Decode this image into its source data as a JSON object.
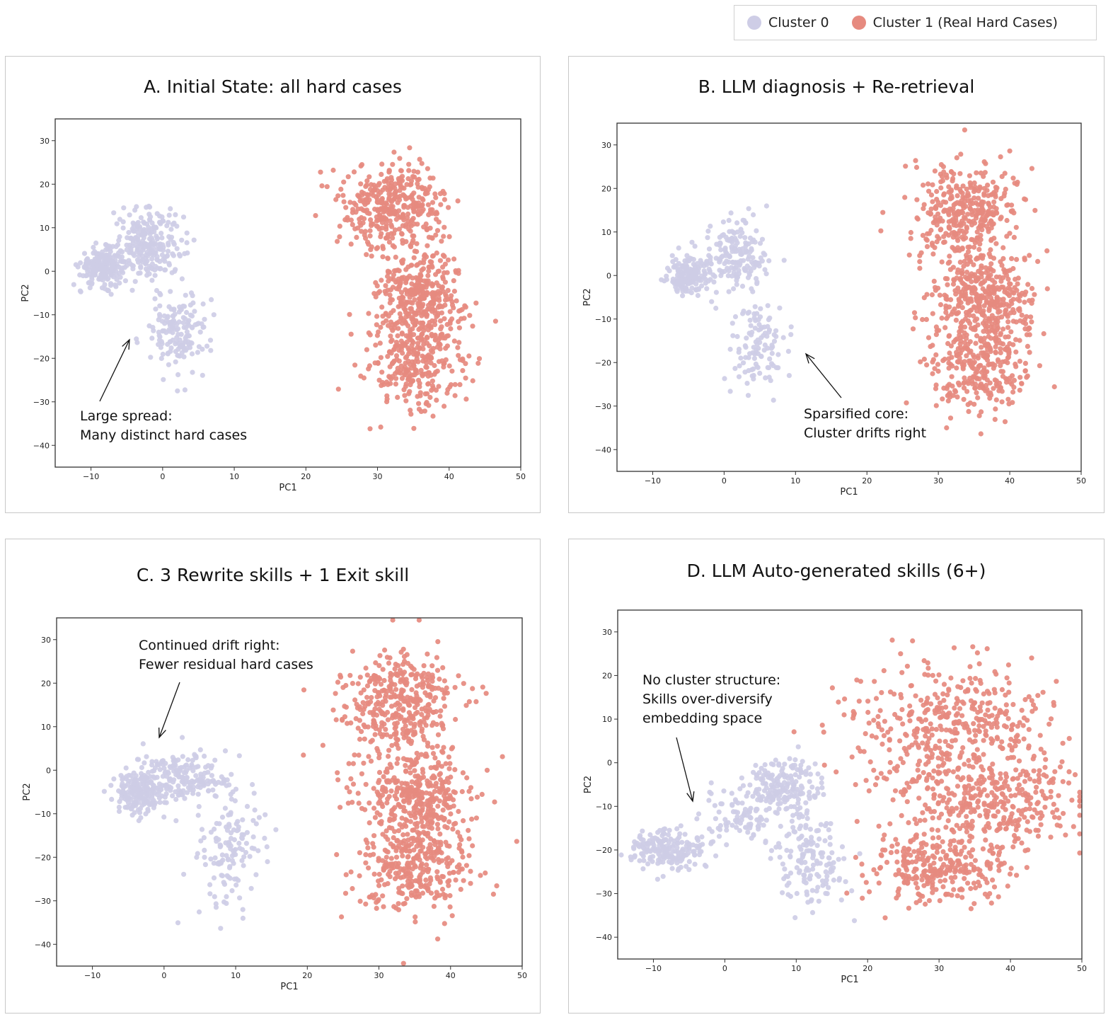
{
  "legend": {
    "items": [
      {
        "label": "Cluster 0",
        "color": "#cecde6"
      },
      {
        "label": "Cluster 1 (Real Hard Cases)",
        "color": "#e68a7f"
      }
    ]
  },
  "panels": [
    {
      "title": "A. Initial State: all hard cases",
      "annotation_lines": [
        "Large spread:",
        "Many distinct hard cases"
      ]
    },
    {
      "title": "B. LLM diagnosis + Re-retrieval",
      "annotation_lines": [
        "Sparsified core:",
        "Cluster drifts right"
      ]
    },
    {
      "title": "C. 3 Rewrite skills + 1 Exit skill",
      "annotation_lines": [
        "Continued drift right:",
        "Fewer residual hard cases"
      ]
    },
    {
      "title": "D. LLM Auto-generated skills (6+)",
      "annotation_lines": [
        "No cluster structure:",
        "Skills over-diversify",
        "embedding space"
      ]
    }
  ],
  "chart_data": [
    {
      "type": "scatter",
      "title": "A. Initial State: all hard cases",
      "xlabel": "PC1",
      "ylabel": "PC2",
      "xlim": [
        -15,
        50
      ],
      "ylim": [
        -45,
        35
      ],
      "xticks": [
        -10,
        0,
        10,
        20,
        30,
        40,
        50
      ],
      "yticks": [
        -40,
        -30,
        -20,
        -10,
        0,
        10,
        20,
        30
      ],
      "grid": false,
      "series": [
        {
          "name": "Cluster 0",
          "color": "#cecde6",
          "blobs": [
            {
              "cx": -8.5,
              "cy": 1,
              "sx": 1.5,
              "sy": 2,
              "n": 220
            },
            {
              "cx": -2,
              "cy": 6,
              "sx": 2.5,
              "sy": 4,
              "n": 260
            },
            {
              "cx": 2,
              "cy": -14,
              "sx": 2.2,
              "sy": 4.5,
              "n": 160
            }
          ]
        },
        {
          "name": "Cluster 1 (Real Hard Cases)",
          "color": "#e68a7f",
          "blobs": [
            {
              "cx": 32.5,
              "cy": 15,
              "sx": 3.5,
              "sy": 5,
              "n": 380
            },
            {
              "cx": 36,
              "cy": -5,
              "sx": 3,
              "sy": 5,
              "n": 320
            },
            {
              "cx": 35.5,
              "cy": -20,
              "sx": 3.5,
              "sy": 6,
              "n": 320
            }
          ]
        }
      ]
    },
    {
      "type": "scatter",
      "title": "B. LLM diagnosis + Re-retrieval",
      "xlabel": "PC1",
      "ylabel": "PC2",
      "xlim": [
        -15,
        50
      ],
      "ylim": [
        -45,
        35
      ],
      "xticks": [
        -10,
        0,
        10,
        20,
        30,
        40,
        50
      ],
      "yticks": [
        -40,
        -30,
        -20,
        -10,
        0,
        10,
        20,
        30
      ],
      "grid": false,
      "series": [
        {
          "name": "Cluster 0",
          "color": "#cecde6",
          "blobs": [
            {
              "cx": -5,
              "cy": 0,
              "sx": 1.3,
              "sy": 2,
              "n": 180
            },
            {
              "cx": 1.5,
              "cy": 5,
              "sx": 2.2,
              "sy": 4.5,
              "n": 180
            },
            {
              "cx": 5,
              "cy": -16,
              "sx": 2,
              "sy": 5,
              "n": 110
            }
          ]
        },
        {
          "name": "Cluster 1 (Real Hard Cases)",
          "color": "#e68a7f",
          "blobs": [
            {
              "cx": 34,
              "cy": 14,
              "sx": 3.5,
              "sy": 6,
              "n": 360
            },
            {
              "cx": 36,
              "cy": -5,
              "sx": 3.5,
              "sy": 5,
              "n": 320
            },
            {
              "cx": 36,
              "cy": -20,
              "sx": 3.5,
              "sy": 6,
              "n": 320
            }
          ]
        }
      ]
    },
    {
      "type": "scatter",
      "title": "C. 3 Rewrite skills + 1 Exit skill",
      "xlabel": "PC1",
      "ylabel": "PC2",
      "xlim": [
        -15,
        50
      ],
      "ylim": [
        -45,
        35
      ],
      "xticks": [
        -10,
        0,
        10,
        20,
        30,
        40,
        50
      ],
      "yticks": [
        -40,
        -30,
        -20,
        -10,
        0,
        10,
        20,
        30
      ],
      "grid": false,
      "series": [
        {
          "name": "Cluster 0",
          "color": "#cecde6",
          "blobs": [
            {
              "cx": -3.5,
              "cy": -5,
              "sx": 1.8,
              "sy": 2.5,
              "n": 200
            },
            {
              "cx": 3,
              "cy": -2,
              "sx": 3,
              "sy": 3,
              "n": 180
            },
            {
              "cx": 9,
              "cy": -18,
              "sx": 2.5,
              "sy": 8,
              "n": 140
            }
          ]
        },
        {
          "name": "Cluster 1 (Real Hard Cases)",
          "color": "#e68a7f",
          "blobs": [
            {
              "cx": 33,
              "cy": 15,
              "sx": 4,
              "sy": 6,
              "n": 380
            },
            {
              "cx": 35,
              "cy": -5,
              "sx": 4,
              "sy": 5,
              "n": 340
            },
            {
              "cx": 35,
              "cy": -22,
              "sx": 4,
              "sy": 6,
              "n": 340
            }
          ]
        }
      ]
    },
    {
      "type": "scatter",
      "title": "D. LLM Auto-generated skills (6+)",
      "xlabel": "PC1",
      "ylabel": "PC2",
      "xlim": [
        -15,
        50
      ],
      "ylim": [
        -45,
        35
      ],
      "xticks": [
        -10,
        0,
        10,
        20,
        30,
        40,
        50
      ],
      "yticks": [
        -40,
        -30,
        -20,
        -10,
        0,
        10,
        20,
        30
      ],
      "grid": false,
      "series": [
        {
          "name": "Cluster 0",
          "color": "#cecde6",
          "blobs": [
            {
              "cx": -8,
              "cy": -20,
              "sx": 2.5,
              "sy": 2.5,
              "n": 200
            },
            {
              "cx": 2,
              "cy": -12,
              "sx": 2.5,
              "sy": 3,
              "n": 90
            },
            {
              "cx": 8,
              "cy": -5,
              "sx": 2.5,
              "sy": 3,
              "n": 180
            },
            {
              "cx": 12,
              "cy": -22,
              "sx": 2.5,
              "sy": 6,
              "n": 150
            }
          ]
        },
        {
          "name": "Cluster 1 (Real Hard Cases)",
          "color": "#e68a7f",
          "blobs": [
            {
              "cx": 32,
              "cy": 8,
              "sx": 7,
              "sy": 8,
              "n": 450
            },
            {
              "cx": 37,
              "cy": -10,
              "sx": 6,
              "sy": 5,
              "n": 300
            },
            {
              "cx": 30,
              "cy": -24,
              "sx": 5,
              "sy": 4,
              "n": 280
            }
          ]
        }
      ]
    }
  ]
}
